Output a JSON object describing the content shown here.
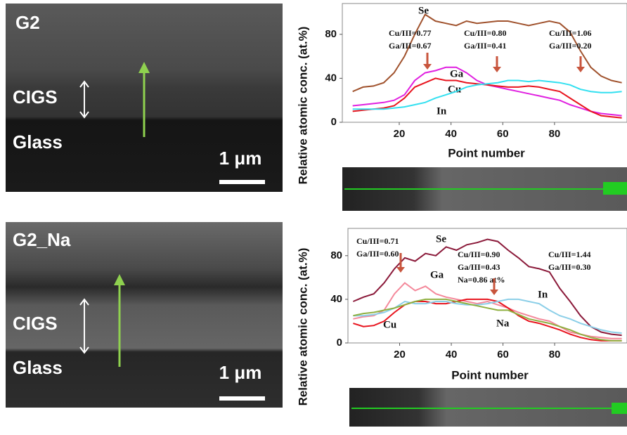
{
  "panels": [
    {
      "label": "G2",
      "layer_top": "CIGS",
      "layer_bottom": "Glass",
      "scale_bar": "1 μm"
    },
    {
      "label": "G2_Na",
      "layer_top": "CIGS",
      "layer_bottom": "Glass",
      "scale_bar": "1 μm"
    }
  ],
  "chart_data": [
    {
      "type": "line",
      "x_label": "Point number",
      "y_label": "Relative atomic conc. (at.%)",
      "x": [
        2,
        6,
        10,
        14,
        18,
        22,
        26,
        30,
        34,
        38,
        42,
        46,
        50,
        54,
        58,
        62,
        66,
        70,
        74,
        78,
        82,
        86,
        90,
        94,
        98,
        102,
        106
      ],
      "xlim": [
        -2,
        108
      ],
      "ylim": [
        0,
        108
      ],
      "xticks": [
        20,
        40,
        60,
        80
      ],
      "yticks": [
        0,
        40,
        80
      ],
      "series": [
        {
          "name": "Se",
          "color": "#a0522d",
          "values": [
            28,
            32,
            33,
            36,
            45,
            60,
            80,
            98,
            92,
            90,
            88,
            92,
            90,
            91,
            92,
            92,
            90,
            88,
            90,
            92,
            90,
            82,
            65,
            50,
            42,
            38,
            36
          ]
        },
        {
          "name": "Ga",
          "color": "#e020e0",
          "values": [
            15,
            16,
            17,
            18,
            20,
            25,
            38,
            45,
            47,
            50,
            50,
            45,
            38,
            34,
            32,
            30,
            28,
            26,
            24,
            22,
            20,
            16,
            13,
            10,
            8,
            7,
            6
          ]
        },
        {
          "name": "Cu",
          "color": "#e8141e",
          "values": [
            10,
            11,
            12,
            13,
            15,
            22,
            32,
            36,
            40,
            38,
            38,
            36,
            35,
            34,
            33,
            32,
            32,
            33,
            32,
            30,
            28,
            22,
            16,
            10,
            6,
            5,
            4
          ]
        },
        {
          "name": "In",
          "color": "#33e0f0",
          "values": [
            12,
            12,
            12,
            12,
            13,
            14,
            16,
            18,
            22,
            25,
            28,
            32,
            34,
            35,
            36,
            38,
            38,
            37,
            38,
            37,
            36,
            34,
            30,
            28,
            27,
            27,
            28
          ]
        }
      ],
      "annotations": [
        [
          "Cu/III=0.77",
          "Ga/III=0.67"
        ],
        [
          "Cu/III=0.80",
          "Ga/III=0.41"
        ],
        [
          "Cu/III=1.06",
          "Ga/III=0.20"
        ]
      ]
    },
    {
      "type": "line",
      "x_label": "Point number",
      "y_label": "Relative atomic conc. (at.%)",
      "x": [
        2,
        6,
        10,
        14,
        18,
        22,
        26,
        30,
        34,
        38,
        42,
        46,
        50,
        54,
        58,
        62,
        66,
        70,
        74,
        78,
        82,
        86,
        90,
        94,
        98,
        102,
        106
      ],
      "xlim": [
        0,
        108
      ],
      "ylim": [
        0,
        105
      ],
      "xticks": [
        20,
        40,
        60,
        80
      ],
      "yticks": [
        0,
        40,
        80
      ],
      "series": [
        {
          "name": "Se",
          "color": "#8b1a3a",
          "values": [
            38,
            42,
            45,
            55,
            68,
            78,
            75,
            82,
            80,
            88,
            85,
            90,
            92,
            95,
            93,
            85,
            78,
            70,
            68,
            65,
            50,
            38,
            25,
            15,
            10,
            8,
            7
          ]
        },
        {
          "name": "Ga",
          "color": "#f4889a",
          "values": [
            22,
            24,
            25,
            30,
            45,
            55,
            48,
            52,
            45,
            42,
            40,
            38,
            36,
            38,
            35,
            32,
            28,
            25,
            22,
            20,
            15,
            10,
            8,
            6,
            5,
            4,
            4
          ]
        },
        {
          "name": "Cu",
          "color": "#e8141e",
          "values": [
            18,
            15,
            16,
            20,
            28,
            35,
            38,
            38,
            36,
            36,
            38,
            40,
            40,
            40,
            38,
            32,
            25,
            20,
            18,
            15,
            12,
            8,
            5,
            3,
            2,
            2,
            2
          ]
        },
        {
          "name": "In",
          "color": "#8ccfe8",
          "values": [
            25,
            25,
            26,
            28,
            32,
            38,
            36,
            36,
            38,
            38,
            36,
            35,
            35,
            36,
            38,
            40,
            40,
            38,
            36,
            30,
            25,
            22,
            18,
            15,
            12,
            10,
            9
          ]
        },
        {
          "name": "Na",
          "color": "#8fb040",
          "values": [
            25,
            27,
            28,
            30,
            32,
            35,
            38,
            40,
            40,
            40,
            38,
            36,
            34,
            32,
            30,
            30,
            26,
            22,
            20,
            18,
            15,
            12,
            8,
            5,
            3,
            2,
            2
          ]
        }
      ],
      "annotations": [
        [
          "Cu/III=0.71",
          "Ga/III=0.60"
        ],
        [
          "Cu/III=0.90",
          "Ga/III=0.43",
          "Na=0.86 at%"
        ],
        [
          "Cu/III=1.44",
          "Ga/III=0.30"
        ]
      ]
    }
  ]
}
